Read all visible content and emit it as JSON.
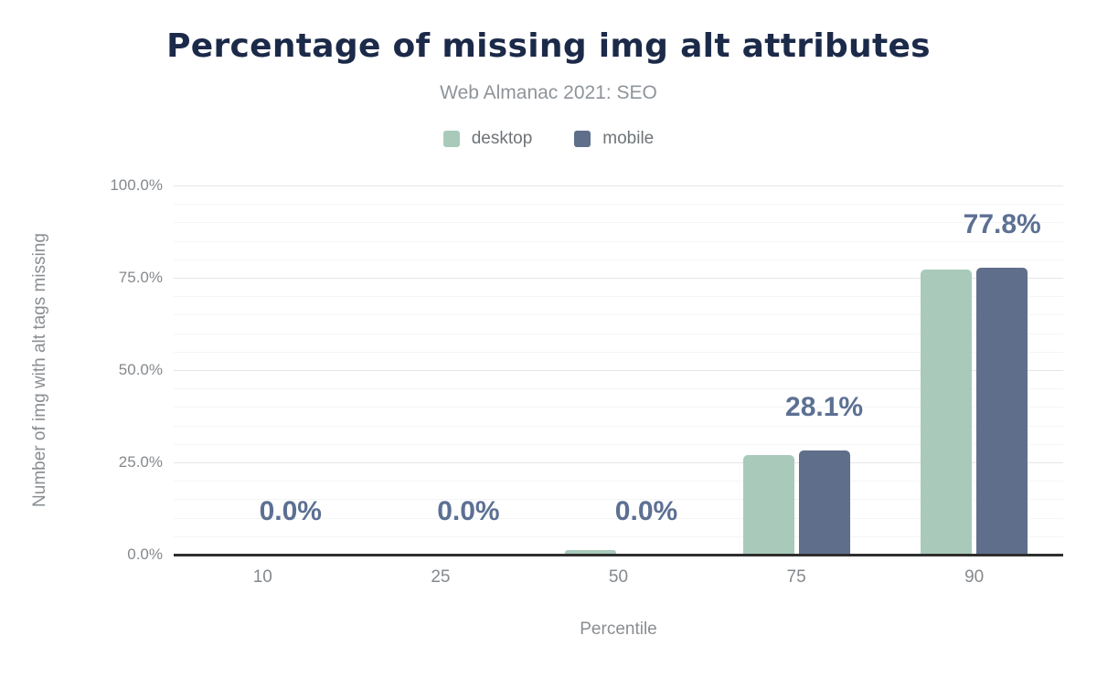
{
  "header": {
    "title": "Percentage of missing img alt attributes",
    "subtitle": "Web Almanac 2021: SEO"
  },
  "legend": {
    "items": [
      {
        "label": "desktop",
        "color": "#a9caba"
      },
      {
        "label": "mobile",
        "color": "#5f6e8a"
      }
    ]
  },
  "axes": {
    "y_title": "Number of img with alt tags missing",
    "x_title": "Percentile",
    "y_ticks": [
      "0.0%",
      "25.0%",
      "50.0%",
      "75.0%",
      "100.0%"
    ],
    "x_ticks": [
      "10",
      "25",
      "50",
      "75",
      "90"
    ]
  },
  "chart_data": {
    "type": "bar",
    "title": "Percentage of missing img alt attributes",
    "subtitle": "Web Almanac 2021: SEO",
    "categories": [
      "10",
      "25",
      "50",
      "75",
      "90"
    ],
    "series": [
      {
        "name": "desktop",
        "color": "#a9caba",
        "values": [
          0.0,
          0.0,
          1.2,
          26.9,
          77.2
        ]
      },
      {
        "name": "mobile",
        "color": "#5f6e8a",
        "values": [
          0.0,
          0.0,
          0.0,
          28.1,
          77.8
        ]
      }
    ],
    "annotations": [
      "0.0%",
      "0.0%",
      "0.0%",
      "28.1%",
      "77.8%"
    ],
    "xlabel": "Percentile",
    "ylabel": "Number of img with alt tags missing",
    "ylim": [
      0,
      100
    ],
    "y_major_step": 25,
    "y_minor_step": 5,
    "grid": true,
    "legend_position": "top"
  },
  "colors": {
    "title": "#1c2a49",
    "subtitle": "#8f9499",
    "tick_label": "#85898d",
    "axis_title": "#8a8e92",
    "annotation": "#5c7093",
    "axis_line": "#2e2e2e",
    "grid_major": "#e3e5e7",
    "grid_minor": "#f4f5f6",
    "background": "#ffffff"
  }
}
